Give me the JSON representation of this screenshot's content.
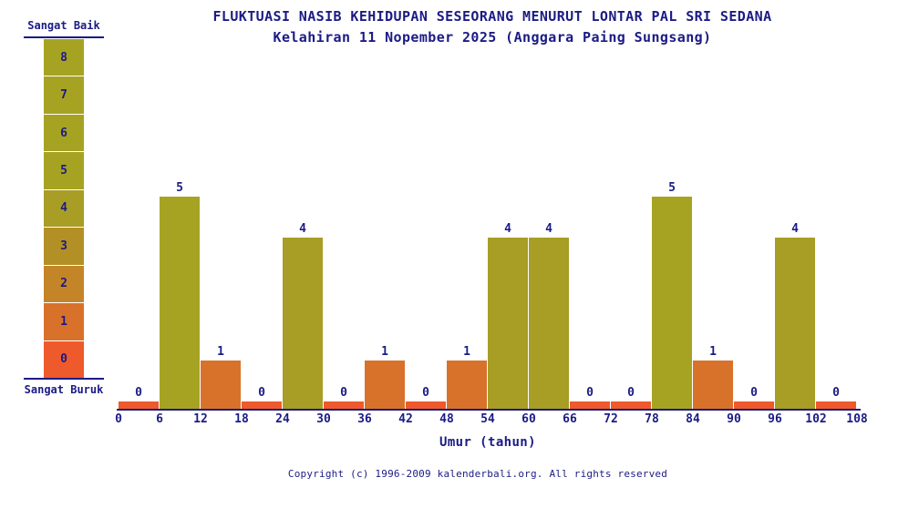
{
  "title": "FLUKTUASI NASIB KEHIDUPAN SESEORANG MENURUT LONTAR PAL SRI SEDANA",
  "subtitle": "Kelahiran 11 Nopember 2025 (Anggara Paing Sungsang)",
  "legend": {
    "top_label": "Sangat Baik",
    "bottom_label": "Sangat Buruk",
    "cells": [
      {
        "value": "8",
        "color": "#a6a323"
      },
      {
        "value": "7",
        "color": "#a6a323"
      },
      {
        "value": "6",
        "color": "#a6a323"
      },
      {
        "value": "5",
        "color": "#a6a323"
      },
      {
        "value": "4",
        "color": "#a89d25"
      },
      {
        "value": "3",
        "color": "#b39026"
      },
      {
        "value": "2",
        "color": "#c48428"
      },
      {
        "value": "1",
        "color": "#d8722a"
      },
      {
        "value": "0",
        "color": "#ee5a2b"
      }
    ]
  },
  "chart_data": {
    "type": "bar",
    "title": "FLUKTUASI NASIB KEHIDUPAN SESEORANG MENURUT LONTAR PAL SRI SEDANA",
    "subtitle": "Kelahiran 11 Nopember 2025 (Anggara Paing Sungsang)",
    "xlabel": "Umur (tahun)",
    "ylabel": "",
    "bin_width": 6,
    "bin_starts": [
      0,
      6,
      12,
      18,
      24,
      30,
      36,
      42,
      48,
      54,
      60,
      66,
      72,
      78,
      84,
      90,
      96,
      102
    ],
    "values": [
      0,
      5,
      1,
      0,
      4,
      0,
      1,
      0,
      1,
      4,
      4,
      0,
      0,
      5,
      1,
      0,
      4,
      0
    ],
    "x_ticks": [
      0,
      6,
      12,
      18,
      24,
      30,
      36,
      42,
      48,
      54,
      60,
      66,
      72,
      78,
      84,
      90,
      96,
      102,
      108
    ],
    "xlim": [
      0,
      108
    ],
    "ylim": [
      0,
      8
    ],
    "grid": false,
    "legend_position": "left",
    "scale_labels": {
      "best": "Sangat Baik",
      "worst": "Sangat Buruk"
    },
    "bar_color_by_value": {
      "0": "#ee5a2b",
      "1": "#d8722a",
      "2": "#c48428",
      "3": "#b39026",
      "4": "#a89d25",
      "5": "#a6a323",
      "6": "#a6a323",
      "7": "#a6a323",
      "8": "#a6a323"
    }
  },
  "footer": "Copyright (c) 1996-2009 kalenderbali.org. All rights reserved",
  "colors": {
    "text": "#1b1b85",
    "axis": "#1b1b85",
    "background": "#ffffff"
  }
}
